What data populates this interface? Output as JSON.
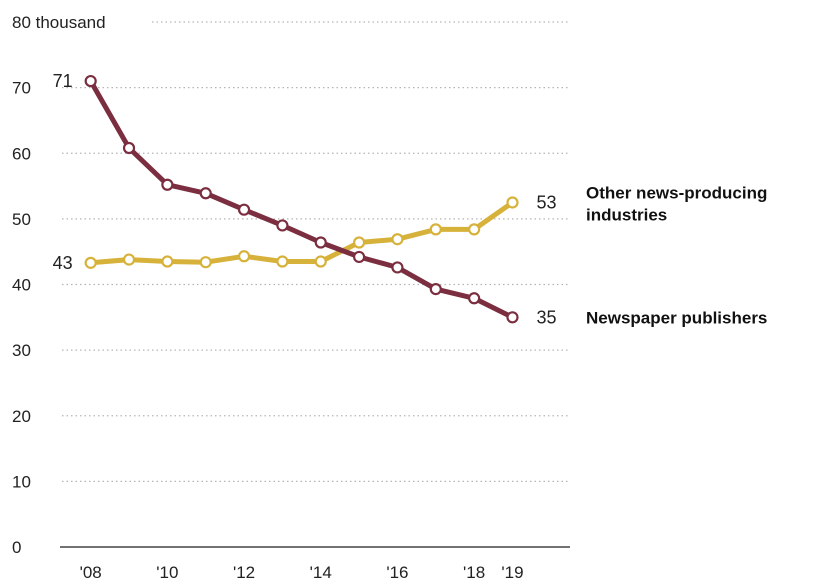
{
  "chart_data": {
    "type": "line",
    "y_top_label": "80 thousand",
    "y_ticks": [
      "0",
      "10",
      "20",
      "30",
      "40",
      "50",
      "60",
      "70"
    ],
    "x_ticks": [
      "'08",
      "'10",
      "'12",
      "'14",
      "'16",
      "'18",
      "'19"
    ],
    "x_tick_years": [
      2008,
      2010,
      2012,
      2014,
      2016,
      2018,
      2019
    ],
    "ylim": [
      0,
      80
    ],
    "xlim": [
      2007.2,
      2020.5
    ],
    "x": [
      2008,
      2009,
      2010,
      2011,
      2012,
      2013,
      2014,
      2015,
      2016,
      2017,
      2018,
      2019
    ],
    "grid": true,
    "series": [
      {
        "name": "Newspaper publishers",
        "color": "#7b2e3f",
        "values": [
          71,
          60.8,
          55.2,
          53.9,
          51.4,
          49,
          46.4,
          44.2,
          42.6,
          39.3,
          37.9,
          35
        ],
        "start_label": "71",
        "end_label": "35",
        "label_lines": [
          "Newspaper publishers"
        ]
      },
      {
        "name": "Other news-producing industries",
        "color": "#d7b23a",
        "values": [
          43.3,
          43.8,
          43.5,
          43.4,
          44.3,
          43.5,
          43.5,
          46.4,
          46.9,
          48.4,
          48.4,
          52.5
        ],
        "start_label": "43",
        "end_label": "53",
        "label_lines": [
          "Other news-producing",
          "industries"
        ]
      }
    ]
  }
}
